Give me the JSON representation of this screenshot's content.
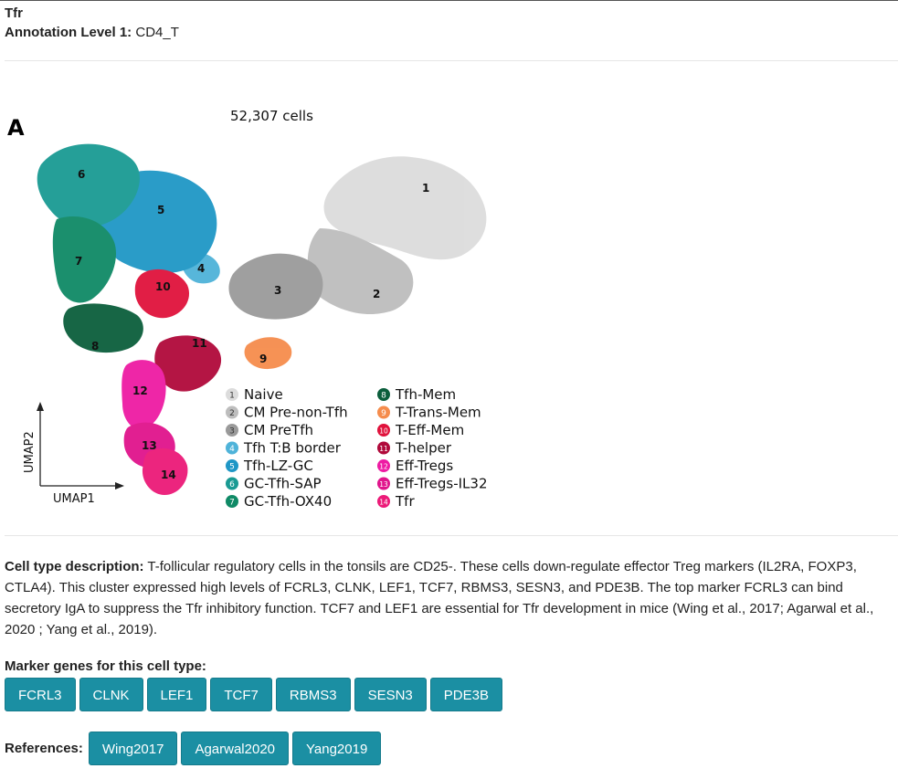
{
  "header": {
    "title": "Tfr",
    "level_label": "Annotation Level 1:",
    "level_value": "CD4_T"
  },
  "figure": {
    "panel_letter": "A",
    "cell_count": "52,307 cells",
    "x_axis": "UMAP1",
    "y_axis": "UMAP2",
    "legend": [
      {
        "n": "1",
        "label": "Naive",
        "color": "#dcdcdc"
      },
      {
        "n": "2",
        "label": "CM Pre-non-Tfh",
        "color": "#bdbdbd"
      },
      {
        "n": "3",
        "label": "CM PreTfh",
        "color": "#9a9a9a"
      },
      {
        "n": "4",
        "label": "Tfh T:B border",
        "color": "#4fb3d9"
      },
      {
        "n": "5",
        "label": "Tfh-LZ-GC",
        "color": "#1f97c6"
      },
      {
        "n": "6",
        "label": "GC-Tfh-SAP",
        "color": "#1a9a93"
      },
      {
        "n": "7",
        "label": "GC-Tfh-OX40",
        "color": "#0f8a66"
      },
      {
        "n": "8",
        "label": "Tfh-Mem",
        "color": "#0b5e3c"
      },
      {
        "n": "9",
        "label": "T-Trans-Mem",
        "color": "#f58c4c"
      },
      {
        "n": "10",
        "label": "T-Eff-Mem",
        "color": "#e0123c"
      },
      {
        "n": "11",
        "label": "T-helper",
        "color": "#b0093a"
      },
      {
        "n": "12",
        "label": "Eff-Tregs",
        "color": "#ee1ba3"
      },
      {
        "n": "13",
        "label": "Eff-Tregs-IL32",
        "color": "#e0148c"
      },
      {
        "n": "14",
        "label": "Tfr",
        "color": "#ec1a78"
      }
    ],
    "clusters": [
      {
        "n": "1",
        "color": "#dcdcdc"
      },
      {
        "n": "2",
        "color": "#bdbdbd"
      },
      {
        "n": "3",
        "color": "#9a9a9a"
      },
      {
        "n": "4",
        "color": "#4fb3d9"
      },
      {
        "n": "5",
        "color": "#1f97c6"
      },
      {
        "n": "6",
        "color": "#1a9a93"
      },
      {
        "n": "7",
        "color": "#0f8a66"
      },
      {
        "n": "8",
        "color": "#0b5e3c"
      },
      {
        "n": "9",
        "color": "#f58c4c"
      },
      {
        "n": "10",
        "color": "#e0123c"
      },
      {
        "n": "11",
        "color": "#b0093a"
      },
      {
        "n": "12",
        "color": "#ee1ba3"
      },
      {
        "n": "13",
        "color": "#e0148c"
      },
      {
        "n": "14",
        "color": "#ec1a78"
      }
    ]
  },
  "description": {
    "label": "Cell type description:",
    "text": " T-follicular regulatory cells in the tonsils are CD25-. These cells down-regulate effector Treg markers (IL2RA, FOXP3, CTLA4). This cluster expressed high levels of FCRL3, CLNK, LEF1, TCF7, RBMS3, SESN3, and PDE3B. The top marker FCRL3 can bind secretory IgA to suppress the Tfr inhibitory function. TCF7 and LEF1 are essential for Tfr development in mice (Wing et al., 2017; Agarwal et al., 2020 ; Yang et al., 2019)."
  },
  "markers": {
    "title": "Marker genes for this cell type:",
    "genes": [
      "FCRL3",
      "CLNK",
      "LEF1",
      "TCF7",
      "RBMS3",
      "SESN3",
      "PDE3B"
    ]
  },
  "references": {
    "label": "References:",
    "items": [
      "Wing2017",
      "Agarwal2020",
      "Yang2019"
    ]
  },
  "colors": {
    "button": "#1b8fa3"
  }
}
